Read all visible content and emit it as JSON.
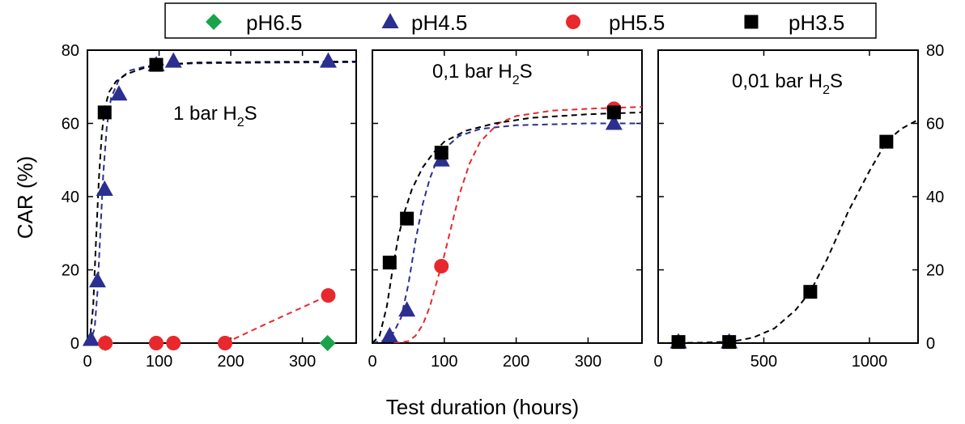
{
  "chart_data": [
    {
      "type": "scatter",
      "panel_label": "1 bar H",
      "panel_label_sub": "2",
      "panel_label_tail": "S",
      "xlim": [
        0,
        375
      ],
      "ylim": [
        0,
        80
      ],
      "xticks": [
        0,
        100,
        200,
        300
      ],
      "yticks": [
        0,
        20,
        40,
        60,
        80
      ],
      "series": [
        {
          "name": "pH6.5",
          "marker": "diamond",
          "color": "#1aa34a",
          "points": [
            [
              25,
              0
            ],
            [
              335,
              0
            ]
          ],
          "curve": []
        },
        {
          "name": "pH4.5",
          "marker": "triangle",
          "color": "#2b2f8f",
          "points": [
            [
              5,
              1
            ],
            [
              14,
              17
            ],
            [
              24,
              42
            ],
            [
              44,
              68
            ],
            [
              96,
              76
            ],
            [
              120,
              77
            ],
            [
              336,
              77
            ]
          ],
          "curve": [
            [
              0,
              0
            ],
            [
              5,
              1
            ],
            [
              10,
              4
            ],
            [
              14,
              14
            ],
            [
              18,
              30
            ],
            [
              22,
              46
            ],
            [
              27,
              59
            ],
            [
              33,
              67
            ],
            [
              44,
              72
            ],
            [
              60,
              74.5
            ],
            [
              80,
              75.5
            ],
            [
              100,
              76
            ],
            [
              150,
              76.4
            ],
            [
              250,
              76.6
            ],
            [
              375,
              76.7
            ]
          ]
        },
        {
          "name": "pH5.5",
          "marker": "circle",
          "color": "#e8282d",
          "points": [
            [
              25,
              0
            ],
            [
              96,
              0
            ],
            [
              120,
              0
            ],
            [
              192,
              0
            ],
            [
              336,
              13
            ]
          ],
          "curve": [
            [
              192,
              0
            ],
            [
              250,
              5.3
            ],
            [
              336,
              13
            ]
          ]
        },
        {
          "name": "pH3.5",
          "marker": "square",
          "color": "#000000",
          "points": [
            [
              24,
              63
            ],
            [
              96,
              76
            ]
          ],
          "curve": [
            [
              0,
              0
            ],
            [
              4,
              2
            ],
            [
              8,
              10
            ],
            [
              12,
              28
            ],
            [
              16,
              45
            ],
            [
              20,
              57
            ],
            [
              24,
              64
            ],
            [
              30,
              68.5
            ],
            [
              40,
              71.5
            ],
            [
              55,
              73.5
            ],
            [
              80,
              75.2
            ],
            [
              100,
              76
            ],
            [
              150,
              76.6
            ],
            [
              250,
              76.8
            ],
            [
              375,
              76.9
            ]
          ]
        }
      ]
    },
    {
      "type": "scatter",
      "panel_label": "0,1 bar H",
      "panel_label_sub": "2",
      "panel_label_tail": "S",
      "xlim": [
        0,
        375
      ],
      "ylim": [
        0,
        80
      ],
      "xticks": [
        0,
        100,
        200,
        300
      ],
      "yticks": [
        0,
        20,
        40,
        60,
        80
      ],
      "series": [
        {
          "name": "pH4.5",
          "marker": "triangle",
          "color": "#2b2f8f",
          "points": [
            [
              24,
              2
            ],
            [
              48,
              9
            ],
            [
              96,
              50
            ],
            [
              336,
              60
            ]
          ],
          "curve": [
            [
              0,
              0
            ],
            [
              20,
              1
            ],
            [
              30,
              3
            ],
            [
              40,
              7
            ],
            [
              50,
              16
            ],
            [
              60,
              28
            ],
            [
              70,
              38
            ],
            [
              80,
              45
            ],
            [
              90,
              50
            ],
            [
              100,
              53
            ],
            [
              120,
              56.5
            ],
            [
              150,
              58.5
            ],
            [
              200,
              59.5
            ],
            [
              300,
              60
            ],
            [
              375,
              60
            ]
          ]
        },
        {
          "name": "pH5.5",
          "marker": "circle",
          "color": "#e8282d",
          "points": [
            [
              96,
              21
            ],
            [
              336,
              64
            ]
          ],
          "curve": [
            [
              30,
              0
            ],
            [
              50,
              0.5
            ],
            [
              60,
              2
            ],
            [
              70,
              5
            ],
            [
              80,
              10
            ],
            [
              90,
              17
            ],
            [
              100,
              24
            ],
            [
              110,
              32
            ],
            [
              120,
              40
            ],
            [
              135,
              49
            ],
            [
              150,
              55
            ],
            [
              175,
              60
            ],
            [
              200,
              62
            ],
            [
              250,
              63.5
            ],
            [
              300,
              64
            ],
            [
              375,
              64.5
            ]
          ]
        },
        {
          "name": "pH3.5",
          "marker": "square",
          "color": "#000000",
          "points": [
            [
              24,
              22
            ],
            [
              48,
              34
            ],
            [
              96,
              52
            ],
            [
              336,
              63
            ]
          ],
          "curve": [
            [
              0,
              0
            ],
            [
              10,
              2
            ],
            [
              20,
              10
            ],
            [
              28,
              20
            ],
            [
              36,
              29
            ],
            [
              45,
              36
            ],
            [
              55,
              42
            ],
            [
              70,
              48
            ],
            [
              85,
              52
            ],
            [
              100,
              55
            ],
            [
              130,
              58
            ],
            [
              170,
              60
            ],
            [
              220,
              61.5
            ],
            [
              300,
              62.5
            ],
            [
              375,
              63
            ]
          ]
        }
      ]
    },
    {
      "type": "scatter",
      "panel_label": "0,01 bar H",
      "panel_label_sub": "2",
      "panel_label_tail": "S",
      "xlim": [
        0,
        1230
      ],
      "ylim": [
        0,
        80
      ],
      "xticks": [
        0,
        500,
        1000
      ],
      "yticks": [
        0,
        20,
        40,
        60,
        80
      ],
      "series": [
        {
          "name": "pH4.5",
          "marker": "triangle",
          "color": "#2b2f8f",
          "points": [
            [
              96,
              0.3
            ],
            [
              336,
              0.3
            ]
          ],
          "curve": []
        },
        {
          "name": "pH3.5",
          "marker": "square",
          "color": "#000000",
          "points": [
            [
              96,
              0.3
            ],
            [
              336,
              0.3
            ],
            [
              720,
              14
            ],
            [
              1080,
              55
            ]
          ],
          "curve": [
            [
              0,
              0
            ],
            [
              200,
              0.1
            ],
            [
              350,
              0.4
            ],
            [
              450,
              1.5
            ],
            [
              550,
              4
            ],
            [
              650,
              9
            ],
            [
              720,
              14
            ],
            [
              800,
              23
            ],
            [
              900,
              36
            ],
            [
              1000,
              47
            ],
            [
              1080,
              55
            ],
            [
              1150,
              58.5
            ],
            [
              1230,
              61
            ]
          ]
        }
      ]
    }
  ],
  "legend": [
    {
      "name": "pH6.5",
      "marker": "diamond",
      "color": "#1aa34a"
    },
    {
      "name": "pH4.5",
      "marker": "triangle",
      "color": "#2b2f8f"
    },
    {
      "name": "pH5.5",
      "marker": "circle",
      "color": "#e8282d"
    },
    {
      "name": "pH3.5",
      "marker": "square",
      "color": "#000000"
    }
  ],
  "ylabel": "CAR (%)",
  "xlabel": "Test duration (hours)"
}
